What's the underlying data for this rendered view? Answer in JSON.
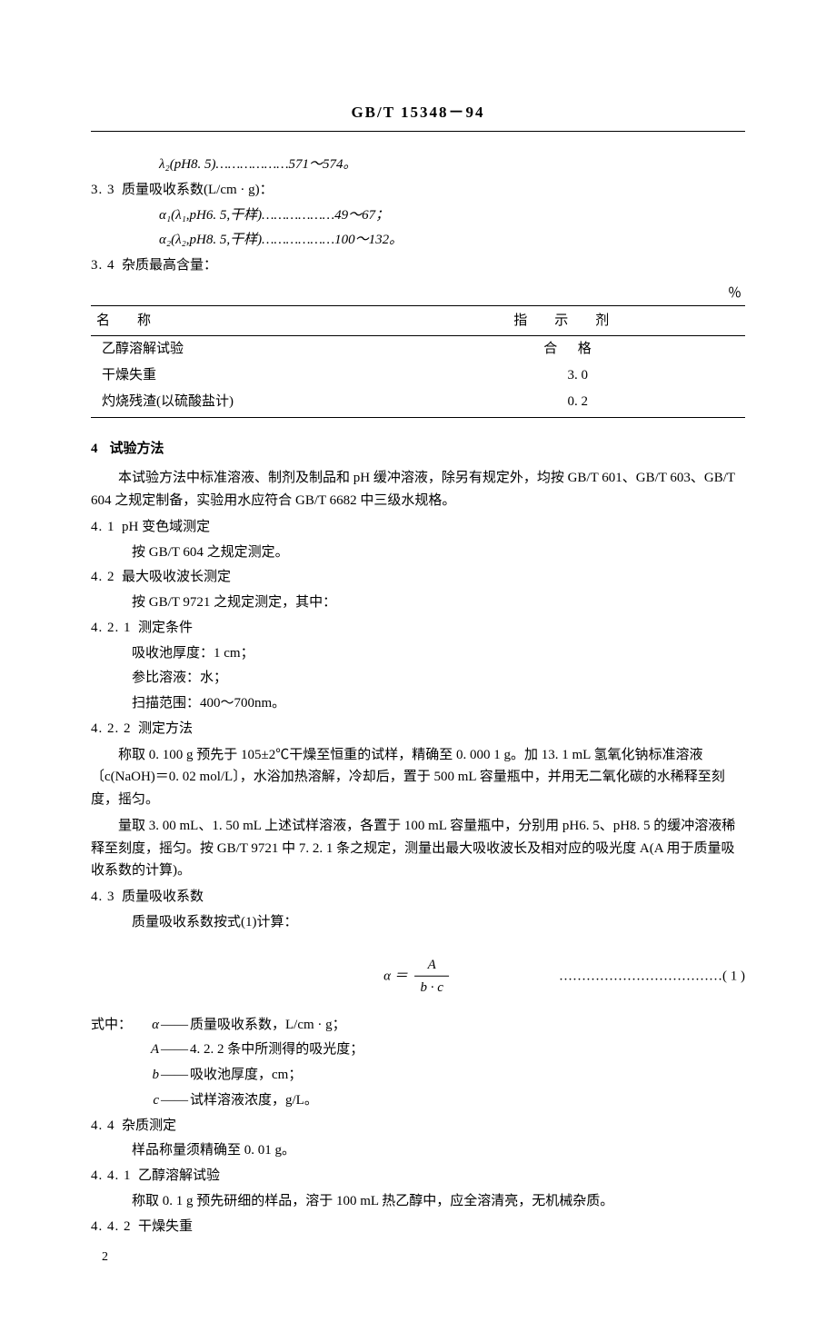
{
  "header": {
    "standard_code": "GB/T 15348－94"
  },
  "s3": {
    "lambda2": "λ₂(pH8. 5)………………571～574。",
    "s3_3_num": "3. 3",
    "s3_3_title": "质量吸收系数(L/cm · g)：",
    "alpha1": "α₁(λ₁,pH6. 5,干样)………………49～67；",
    "alpha2": "α₂(λ₂,pH8. 5,干样)………………100～132。",
    "s3_4_num": "3. 4",
    "s3_4_title": "杂质最高含量：",
    "unit": "％"
  },
  "table": {
    "col_name": "名称",
    "col_val": "指示剂",
    "rows": [
      {
        "name": "乙醇溶解试验",
        "val": "合格",
        "hege": true
      },
      {
        "name": "干燥失重",
        "val": "3. 0"
      },
      {
        "name": "灼烧残渣(以硫酸盐计)",
        "val": "0. 2"
      }
    ]
  },
  "s4": {
    "num": "4",
    "title": "试验方法",
    "intro": "本试验方法中标准溶液、制剂及制品和 pH 缓冲溶液，除另有规定外，均按 GB/T 601、GB/T 603、GB/T 604 之规定制备，实验用水应符合 GB/T 6682 中三级水规格。",
    "s4_1_num": "4. 1",
    "s4_1_title": "pH 变色域测定",
    "s4_1_body": "按 GB/T 604 之规定测定。",
    "s4_2_num": "4. 2",
    "s4_2_title": "最大吸收波长测定",
    "s4_2_body": "按 GB/T 9721 之规定测定，其中：",
    "s4_2_1_num": "4. 2. 1",
    "s4_2_1_title": "测定条件",
    "cond1": "吸收池厚度：1 cm；",
    "cond2": "参比溶液：水；",
    "cond3": "扫描范围：400～700nm。",
    "s4_2_2_num": "4. 2. 2",
    "s4_2_2_title": "测定方法",
    "s4_2_2_p1": "称取 0. 100 g 预先于 105±2℃干燥至恒重的试样，精确至 0. 000 1 g。加 13. 1 mL 氢氧化钠标准溶液〔c(NaOH)＝0. 02 mol/L〕，水浴加热溶解，冷却后，置于 500 mL 容量瓶中，并用无二氧化碳的水稀释至刻度，摇匀。",
    "s4_2_2_p2": "量取 3. 00 mL、1. 50 mL 上述试样溶液，各置于 100 mL 容量瓶中，分别用 pH6. 5、pH8. 5 的缓冲溶液稀释至刻度，摇匀。按 GB/T 9721 中 7. 2. 1 条之规定，测量出最大吸收波长及相对应的吸光度 A(A 用于质量吸收系数的计算)。",
    "s4_3_num": "4. 3",
    "s4_3_title": "质量吸收系数",
    "s4_3_body": "质量吸收系数按式(1)计算：",
    "eq": {
      "lhs": "α",
      "eq": "＝",
      "num": "A",
      "den": "b · c",
      "dots": "………………………………",
      "ref": "( 1 )"
    },
    "where_label": "式中：",
    "where": [
      {
        "sym": "α",
        "text": "质量吸收系数，L/cm · g；"
      },
      {
        "sym": "A",
        "text": "4. 2. 2 条中所测得的吸光度；"
      },
      {
        "sym": "b",
        "text": "吸收池厚度，cm；"
      },
      {
        "sym": "c",
        "text": "试样溶液浓度，g/L。"
      }
    ],
    "s4_4_num": "4. 4",
    "s4_4_title": "杂质测定",
    "s4_4_body": "样品称量须精确至 0. 01 g。",
    "s4_4_1_num": "4. 4. 1",
    "s4_4_1_title": "乙醇溶解试验",
    "s4_4_1_body": "称取 0. 1 g 预先研细的样品，溶于 100 mL 热乙醇中，应全溶清亮，无机械杂质。",
    "s4_4_2_num": "4. 4. 2",
    "s4_4_2_title": "干燥失重"
  },
  "page_number": "2"
}
